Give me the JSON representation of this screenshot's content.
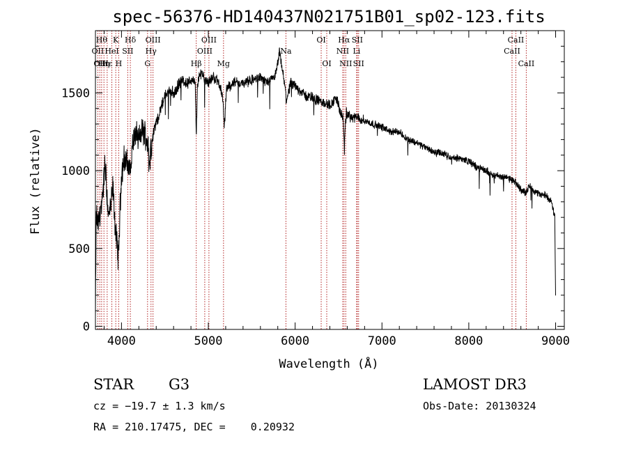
{
  "chart_data": {
    "type": "line",
    "title": "spec-56376-HD140437N021751B01_sp02-123.fits",
    "xlabel": "Wavelength (Å)",
    "ylabel": "Flux (relative)",
    "xlim": [
      3700,
      9100
    ],
    "ylim": [
      -20,
      1900
    ],
    "x_ticks": [
      4000,
      5000,
      6000,
      7000,
      8000,
      9000
    ],
    "y_ticks": [
      0,
      500,
      1000,
      1500
    ],
    "grid": false,
    "line_color": "#000000",
    "marker_color": "#b22222",
    "spectrum_anchors": [
      [
        3700,
        50
      ],
      [
        3710,
        720
      ],
      [
        3730,
        650
      ],
      [
        3750,
        720
      ],
      [
        3780,
        800
      ],
      [
        3810,
        1050
      ],
      [
        3830,
        880
      ],
      [
        3850,
        700
      ],
      [
        3880,
        780
      ],
      [
        3900,
        900
      ],
      [
        3930,
        620
      ],
      [
        3950,
        520
      ],
      [
        3965,
        430
      ],
      [
        3980,
        700
      ],
      [
        4000,
        980
      ],
      [
        4030,
        1080
      ],
      [
        4060,
        1050
      ],
      [
        4100,
        1000
      ],
      [
        4130,
        1180
      ],
      [
        4170,
        1250
      ],
      [
        4200,
        1200
      ],
      [
        4240,
        1260
      ],
      [
        4280,
        1230
      ],
      [
        4310,
        1150
      ],
      [
        4320,
        1020
      ],
      [
        4340,
        1160
      ],
      [
        4370,
        1250
      ],
      [
        4400,
        1310
      ],
      [
        4450,
        1390
      ],
      [
        4500,
        1480
      ],
      [
        4560,
        1520
      ],
      [
        4610,
        1490
      ],
      [
        4660,
        1560
      ],
      [
        4710,
        1580
      ],
      [
        4760,
        1560
      ],
      [
        4820,
        1590
      ],
      [
        4850,
        1550
      ],
      [
        4861,
        1200
      ],
      [
        4875,
        1560
      ],
      [
        4920,
        1640
      ],
      [
        4960,
        1590
      ],
      [
        5000,
        1570
      ],
      [
        5060,
        1600
      ],
      [
        5120,
        1570
      ],
      [
        5170,
        1460
      ],
      [
        5183,
        1260
      ],
      [
        5210,
        1530
      ],
      [
        5300,
        1570
      ],
      [
        5400,
        1560
      ],
      [
        5500,
        1580
      ],
      [
        5600,
        1600
      ],
      [
        5700,
        1560
      ],
      [
        5780,
        1620
      ],
      [
        5820,
        1760
      ],
      [
        5860,
        1620
      ],
      [
        5890,
        1510
      ],
      [
        5896,
        1450
      ],
      [
        5950,
        1560
      ],
      [
        6050,
        1520
      ],
      [
        6120,
        1480
      ],
      [
        6200,
        1470
      ],
      [
        6300,
        1440
      ],
      [
        6400,
        1420
      ],
      [
        6480,
        1470
      ],
      [
        6520,
        1370
      ],
      [
        6550,
        1350
      ],
      [
        6563,
        1170
      ],
      [
        6590,
        1370
      ],
      [
        6650,
        1340
      ],
      [
        6720,
        1340
      ],
      [
        6800,
        1320
      ],
      [
        6900,
        1300
      ],
      [
        7000,
        1280
      ],
      [
        7100,
        1250
      ],
      [
        7200,
        1250
      ],
      [
        7300,
        1200
      ],
      [
        7400,
        1180
      ],
      [
        7500,
        1150
      ],
      [
        7600,
        1120
      ],
      [
        7700,
        1110
      ],
      [
        7800,
        1080
      ],
      [
        7900,
        1080
      ],
      [
        8000,
        1060
      ],
      [
        8100,
        1020
      ],
      [
        8200,
        1000
      ],
      [
        8300,
        970
      ],
      [
        8400,
        960
      ],
      [
        8500,
        940
      ],
      [
        8540,
        920
      ],
      [
        8600,
        880
      ],
      [
        8660,
        860
      ],
      [
        8700,
        900
      ],
      [
        8800,
        850
      ],
      [
        8900,
        840
      ],
      [
        8950,
        800
      ],
      [
        8990,
        700
      ],
      [
        9000,
        200
      ]
    ],
    "line_markers": [
      {
        "wl": 3727,
        "labels": [
          {
            "text": "OII",
            "row": 2
          }
        ]
      },
      {
        "wl": 3750,
        "labels": [
          {
            "text": "OII",
            "row": 3
          }
        ]
      },
      {
        "wl": 3771,
        "labels": [
          {
            "text": "Hθ",
            "row": 1
          }
        ]
      },
      {
        "wl": 3798,
        "labels": [
          {
            "text": "Hη",
            "row": 3
          }
        ]
      },
      {
        "wl": 3835,
        "labels": [
          {
            "text": "Hε",
            "row": 3
          }
        ]
      },
      {
        "wl": 3889,
        "labels": [
          {
            "text": "HeI",
            "row": 2
          }
        ]
      },
      {
        "wl": 3934,
        "labels": [
          {
            "text": "K",
            "row": 1
          }
        ]
      },
      {
        "wl": 3968,
        "labels": [
          {
            "text": "H",
            "row": 3
          }
        ]
      },
      {
        "wl": 4072,
        "labels": [
          {
            "text": "SII",
            "row": 2
          }
        ]
      },
      {
        "wl": 4102,
        "labels": [
          {
            "text": "Hδ",
            "row": 1
          }
        ]
      },
      {
        "wl": 4300,
        "labels": [
          {
            "text": "G",
            "row": 3
          }
        ]
      },
      {
        "wl": 4340,
        "labels": [
          {
            "text": "Hγ",
            "row": 2
          }
        ]
      },
      {
        "wl": 4363,
        "labels": [
          {
            "text": "OIII",
            "row": 1
          }
        ]
      },
      {
        "wl": 4861,
        "labels": [
          {
            "text": "Hβ",
            "row": 3
          }
        ]
      },
      {
        "wl": 4959,
        "labels": [
          {
            "text": "OIII",
            "row": 2
          }
        ]
      },
      {
        "wl": 5007,
        "labels": [
          {
            "text": "OIII",
            "row": 1
          }
        ]
      },
      {
        "wl": 5175,
        "labels": [
          {
            "text": "Mg",
            "row": 3
          }
        ]
      },
      {
        "wl": 5894,
        "labels": [
          {
            "text": "Na",
            "row": 2
          }
        ]
      },
      {
        "wl": 6300,
        "labels": [
          {
            "text": "OI",
            "row": 1
          }
        ]
      },
      {
        "wl": 6364,
        "labels": [
          {
            "text": "OI",
            "row": 3
          }
        ]
      },
      {
        "wl": 6548,
        "labels": [
          {
            "text": "NII",
            "row": 2
          }
        ]
      },
      {
        "wl": 6563,
        "labels": [
          {
            "text": "Hα",
            "row": 1
          }
        ]
      },
      {
        "wl": 6583,
        "labels": [
          {
            "text": "NII",
            "row": 3
          }
        ]
      },
      {
        "wl": 6708,
        "labels": [
          {
            "text": "Li",
            "row": 2
          }
        ]
      },
      {
        "wl": 6716,
        "labels": [
          {
            "text": "SII",
            "row": 1
          }
        ]
      },
      {
        "wl": 6731,
        "labels": [
          {
            "text": "SII",
            "row": 3
          }
        ]
      },
      {
        "wl": 8498,
        "labels": [
          {
            "text": "CaII",
            "row": 2
          }
        ]
      },
      {
        "wl": 8542,
        "labels": [
          {
            "text": "CaII",
            "row": 1
          }
        ]
      },
      {
        "wl": 8662,
        "labels": [
          {
            "text": "CaII",
            "row": 3
          }
        ]
      }
    ]
  },
  "info": {
    "object_class": "STAR",
    "subclass": "G3",
    "survey": "LAMOST DR3",
    "redshift": "cz = −19.7 ± 1.3 km/s",
    "obs_date": "Obs-Date: 20130324",
    "coords": "RA = 210.17475, DEC =    0.20932"
  }
}
